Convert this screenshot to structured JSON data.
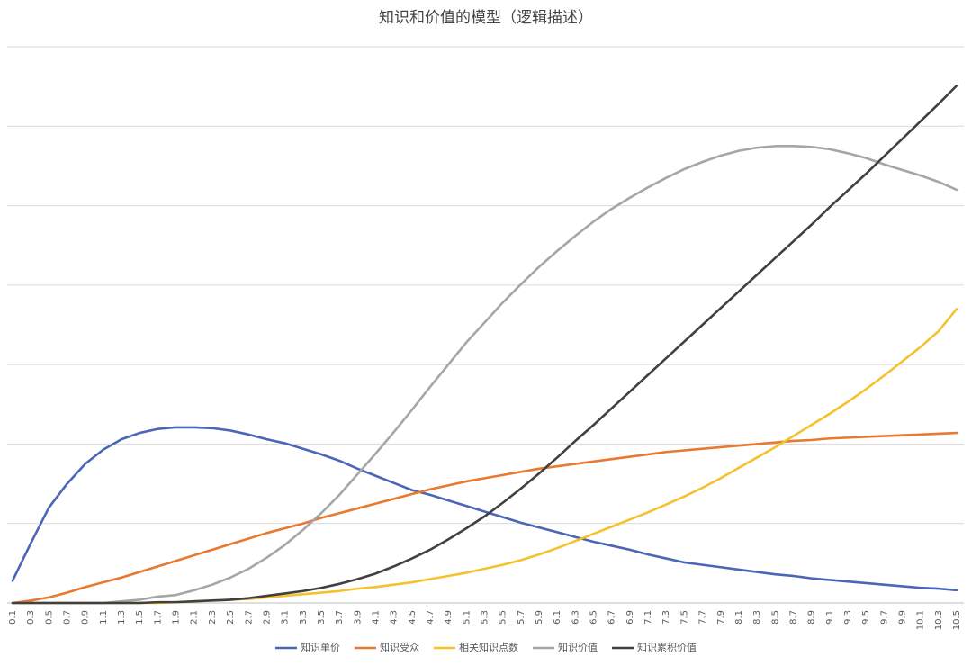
{
  "chart_data": {
    "type": "line",
    "title": "知识和价值的模型（逻辑描述）",
    "categories": [
      "0.1",
      "0.3",
      "0.5",
      "0.7",
      "0.9",
      "1.1",
      "1.3",
      "1.5",
      "1.7",
      "1.9",
      "2.1",
      "2.3",
      "2.5",
      "2.7",
      "2.9",
      "3.1",
      "3.3",
      "3.5",
      "3.7",
      "3.9",
      "4.1",
      "4.3",
      "4.5",
      "4.7",
      "4.9",
      "5.1",
      "5.3",
      "5.5",
      "5.7",
      "5.9",
      "6.1",
      "6.3",
      "6.5",
      "6.7",
      "6.9",
      "7.1",
      "7.3",
      "7.5",
      "7.7",
      "7.9",
      "8.1",
      "8.3",
      "8.5",
      "8.7",
      "8.9",
      "9.1",
      "9.3",
      "9.5",
      "9.7",
      "9.9",
      "10.1",
      "10.3",
      "10.5"
    ],
    "ylim": [
      0,
      7
    ],
    "yticks": [
      0,
      1,
      2,
      3,
      4,
      5,
      6,
      7
    ],
    "ytick_labels": false,
    "grid": true,
    "legend": "bottom",
    "series": [
      {
        "name": "知识单价",
        "color": "#4a67b7",
        "values": [
          0.28,
          0.75,
          1.2,
          1.5,
          1.75,
          1.93,
          2.06,
          2.14,
          2.19,
          2.21,
          2.21,
          2.2,
          2.17,
          2.12,
          2.06,
          2.01,
          1.94,
          1.87,
          1.79,
          1.69,
          1.6,
          1.51,
          1.42,
          1.36,
          1.29,
          1.22,
          1.15,
          1.08,
          1.01,
          0.95,
          0.89,
          0.83,
          0.77,
          0.72,
          0.67,
          0.61,
          0.56,
          0.51,
          0.48,
          0.45,
          0.42,
          0.39,
          0.36,
          0.34,
          0.31,
          0.29,
          0.27,
          0.25,
          0.23,
          0.21,
          0.19,
          0.18,
          0.16
        ]
      },
      {
        "name": "知识受众",
        "color": "#e8792f",
        "values": [
          0,
          0.03,
          0.07,
          0.13,
          0.2,
          0.26,
          0.32,
          0.39,
          0.46,
          0.53,
          0.6,
          0.67,
          0.74,
          0.81,
          0.88,
          0.94,
          1.0,
          1.07,
          1.13,
          1.19,
          1.25,
          1.31,
          1.37,
          1.43,
          1.48,
          1.53,
          1.57,
          1.61,
          1.65,
          1.69,
          1.72,
          1.75,
          1.78,
          1.81,
          1.84,
          1.87,
          1.9,
          1.92,
          1.94,
          1.96,
          1.98,
          2.0,
          2.02,
          2.04,
          2.05,
          2.07,
          2.08,
          2.09,
          2.1,
          2.11,
          2.12,
          2.13,
          2.14
        ]
      },
      {
        "name": "相关知识点数",
        "color": "#f5c12e",
        "values": [
          0,
          0,
          0,
          0,
          0,
          0,
          0,
          0,
          0,
          0.01,
          0.02,
          0.03,
          0.04,
          0.05,
          0.07,
          0.09,
          0.11,
          0.13,
          0.15,
          0.18,
          0.2,
          0.23,
          0.26,
          0.3,
          0.34,
          0.38,
          0.43,
          0.48,
          0.54,
          0.61,
          0.69,
          0.78,
          0.87,
          0.96,
          1.05,
          1.14,
          1.24,
          1.34,
          1.45,
          1.57,
          1.7,
          1.83,
          1.96,
          2.1,
          2.24,
          2.38,
          2.53,
          2.69,
          2.86,
          3.04,
          3.22,
          3.42,
          3.7
        ]
      },
      {
        "name": "知识价值",
        "color": "#a6a6a6",
        "values": [
          0,
          0,
          0,
          0,
          0,
          0,
          0.02,
          0.04,
          0.08,
          0.1,
          0.16,
          0.23,
          0.32,
          0.43,
          0.57,
          0.73,
          0.92,
          1.13,
          1.36,
          1.62,
          1.88,
          2.15,
          2.43,
          2.72,
          3.0,
          3.28,
          3.53,
          3.78,
          4.01,
          4.23,
          4.43,
          4.62,
          4.8,
          4.96,
          5.1,
          5.23,
          5.35,
          5.46,
          5.55,
          5.63,
          5.69,
          5.73,
          5.75,
          5.75,
          5.74,
          5.71,
          5.66,
          5.6,
          5.52,
          5.45,
          5.38,
          5.3,
          5.2
        ]
      },
      {
        "name": "知识累积价值",
        "color": "#404040",
        "values": [
          0,
          0,
          0,
          0,
          0,
          0,
          0,
          0,
          0.01,
          0.01,
          0.02,
          0.03,
          0.04,
          0.06,
          0.09,
          0.12,
          0.15,
          0.19,
          0.24,
          0.3,
          0.37,
          0.46,
          0.56,
          0.67,
          0.8,
          0.94,
          1.09,
          1.26,
          1.44,
          1.63,
          1.83,
          2.04,
          2.24,
          2.45,
          2.66,
          2.87,
          3.08,
          3.29,
          3.5,
          3.71,
          3.92,
          4.13,
          4.34,
          4.55,
          4.76,
          4.98,
          5.19,
          5.4,
          5.62,
          5.84,
          6.06,
          6.28,
          6.51
        ]
      }
    ]
  }
}
